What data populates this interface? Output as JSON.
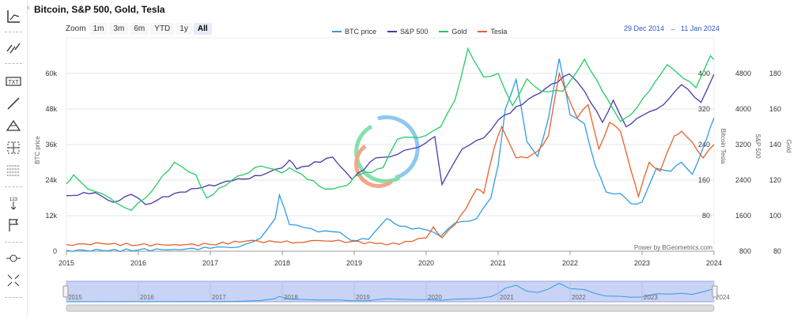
{
  "title": "Bitcoin, S&P 500, Gold, Tesla",
  "zoom": {
    "label": "Zoom",
    "buttons": [
      "1m",
      "3m",
      "6m",
      "YTD",
      "1y",
      "All"
    ],
    "active": "All"
  },
  "range": {
    "from": "29 Dec 2014",
    "arrow": "→",
    "to": "11 Jan 2024"
  },
  "credit": "Power by BGeometrics.com",
  "toolbar": {
    "collapse": "‹",
    "tools": [
      "crosshair-axes-icon",
      "trend-lines-icon",
      "text-annotation-icon",
      "line-icon",
      "fibonacci-icon",
      "measure-icon",
      "grid-lines-icon",
      "vertical-counter-icon",
      "flag-icon",
      "zoom-out-icon",
      "fullscreen-icon"
    ]
  },
  "colors": {
    "btc": "#2f9ce6",
    "sp500": "#4a39a8",
    "gold": "#22cc66",
    "tesla": "#e8602c",
    "navigator": "#c9d3f5"
  },
  "chart_data": {
    "type": "line",
    "x_axis": {
      "ticks": [
        "2015",
        "2016",
        "2017",
        "2018",
        "2019",
        "2020",
        "2021",
        "2022",
        "2023",
        "2024"
      ],
      "range": [
        2015,
        2024
      ]
    },
    "y_axes": [
      {
        "id": "btc",
        "label": "BTC price",
        "ticks": [
          "0",
          "12k",
          "24k",
          "36k",
          "48k",
          "60k"
        ],
        "range": [
          0,
          72000
        ]
      },
      {
        "id": "tesla",
        "label": "Bitcoin  Tesla",
        "ticks": [
          "80",
          "160",
          "240",
          "320",
          "400"
        ],
        "range": [
          0,
          480
        ]
      },
      {
        "id": "sp500",
        "label": "S&P 500",
        "ticks": [
          "800",
          "1600",
          "2400",
          "3200",
          "4000",
          "4800"
        ],
        "range": [
          800,
          5600
        ]
      },
      {
        "id": "gold",
        "label": "Gold",
        "ticks": [
          "80",
          "100",
          "120",
          "140",
          "160",
          "180"
        ],
        "range": [
          80,
          200
        ]
      }
    ],
    "series": [
      {
        "name": "BTC price",
        "axis": "btc",
        "color": "#2f9ce6",
        "points": [
          [
            2015.0,
            300
          ],
          [
            2015.5,
            250
          ],
          [
            2016.0,
            430
          ],
          [
            2016.5,
            650
          ],
          [
            2017.0,
            1000
          ],
          [
            2017.3,
            1200
          ],
          [
            2017.5,
            2500
          ],
          [
            2017.7,
            4500
          ],
          [
            2017.9,
            11000
          ],
          [
            2017.96,
            19000
          ],
          [
            2018.1,
            9000
          ],
          [
            2018.3,
            8000
          ],
          [
            2018.5,
            6500
          ],
          [
            2018.8,
            6400
          ],
          [
            2018.95,
            3700
          ],
          [
            2019.2,
            4000
          ],
          [
            2019.45,
            11000
          ],
          [
            2019.55,
            9500
          ],
          [
            2019.8,
            7500
          ],
          [
            2020.0,
            7200
          ],
          [
            2020.2,
            5000
          ],
          [
            2020.4,
            9500
          ],
          [
            2020.7,
            11000
          ],
          [
            2020.9,
            18000
          ],
          [
            2021.0,
            29000
          ],
          [
            2021.1,
            48000
          ],
          [
            2021.25,
            58000
          ],
          [
            2021.4,
            37000
          ],
          [
            2021.55,
            32000
          ],
          [
            2021.7,
            45000
          ],
          [
            2021.85,
            65000
          ],
          [
            2022.0,
            46000
          ],
          [
            2022.2,
            43000
          ],
          [
            2022.35,
            29000
          ],
          [
            2022.5,
            20000
          ],
          [
            2022.7,
            19500
          ],
          [
            2022.85,
            16000
          ],
          [
            2023.0,
            16600
          ],
          [
            2023.2,
            28000
          ],
          [
            2023.4,
            27000
          ],
          [
            2023.55,
            30000
          ],
          [
            2023.7,
            26000
          ],
          [
            2023.85,
            35000
          ],
          [
            2023.95,
            42000
          ],
          [
            2024.0,
            45000
          ]
        ]
      },
      {
        "name": "S&P 500",
        "axis": "sp500",
        "color": "#4a39a8",
        "points": [
          [
            2015.0,
            2050
          ],
          [
            2015.4,
            2120
          ],
          [
            2015.65,
            1900
          ],
          [
            2015.9,
            2080
          ],
          [
            2016.1,
            1850
          ],
          [
            2016.5,
            2100
          ],
          [
            2016.9,
            2240
          ],
          [
            2017.3,
            2380
          ],
          [
            2017.7,
            2500
          ],
          [
            2017.99,
            2670
          ],
          [
            2018.1,
            2850
          ],
          [
            2018.2,
            2650
          ],
          [
            2018.7,
            2920
          ],
          [
            2018.97,
            2420
          ],
          [
            2019.3,
            2900
          ],
          [
            2019.6,
            2980
          ],
          [
            2019.99,
            3230
          ],
          [
            2020.12,
            3380
          ],
          [
            2020.22,
            2300
          ],
          [
            2020.5,
            3100
          ],
          [
            2020.8,
            3350
          ],
          [
            2021.0,
            3750
          ],
          [
            2021.5,
            4300
          ],
          [
            2021.99,
            4790
          ],
          [
            2022.2,
            4400
          ],
          [
            2022.45,
            3700
          ],
          [
            2022.6,
            4200
          ],
          [
            2022.78,
            3600
          ],
          [
            2023.0,
            3850
          ],
          [
            2023.3,
            4100
          ],
          [
            2023.55,
            4550
          ],
          [
            2023.82,
            4150
          ],
          [
            2024.0,
            4780
          ]
        ]
      },
      {
        "name": "Gold",
        "axis": "gold",
        "color": "#22cc66",
        "points": [
          [
            2015.0,
            118
          ],
          [
            2015.1,
            123
          ],
          [
            2015.3,
            115
          ],
          [
            2015.6,
            110
          ],
          [
            2015.9,
            103
          ],
          [
            2016.1,
            110
          ],
          [
            2016.5,
            130
          ],
          [
            2016.8,
            123
          ],
          [
            2016.95,
            110
          ],
          [
            2017.3,
            120
          ],
          [
            2017.7,
            128
          ],
          [
            2017.99,
            124
          ],
          [
            2018.1,
            127
          ],
          [
            2018.6,
            115
          ],
          [
            2018.9,
            117
          ],
          [
            2019.0,
            122
          ],
          [
            2019.4,
            127
          ],
          [
            2019.6,
            143
          ],
          [
            2019.99,
            145
          ],
          [
            2020.2,
            150
          ],
          [
            2020.4,
            165
          ],
          [
            2020.58,
            194
          ],
          [
            2020.8,
            178
          ],
          [
            2021.0,
            180
          ],
          [
            2021.2,
            162
          ],
          [
            2021.4,
            177
          ],
          [
            2021.6,
            170
          ],
          [
            2021.9,
            170
          ],
          [
            2022.2,
            188
          ],
          [
            2022.45,
            170
          ],
          [
            2022.7,
            153
          ],
          [
            2022.85,
            157
          ],
          [
            2023.1,
            170
          ],
          [
            2023.35,
            185
          ],
          [
            2023.5,
            180
          ],
          [
            2023.75,
            172
          ],
          [
            2023.95,
            190
          ],
          [
            2024.0,
            188
          ]
        ]
      },
      {
        "name": "Tesla",
        "axis": "tesla",
        "color": "#e8602c",
        "points": [
          [
            2015.0,
            15
          ],
          [
            2015.5,
            17
          ],
          [
            2016.0,
            14
          ],
          [
            2016.5,
            15
          ],
          [
            2017.0,
            15
          ],
          [
            2017.5,
            23
          ],
          [
            2017.9,
            21
          ],
          [
            2018.3,
            20
          ],
          [
            2018.6,
            23
          ],
          [
            2018.97,
            22
          ],
          [
            2019.3,
            17
          ],
          [
            2019.45,
            14
          ],
          [
            2019.8,
            22
          ],
          [
            2020.0,
            30
          ],
          [
            2020.1,
            55
          ],
          [
            2020.22,
            30
          ],
          [
            2020.4,
            60
          ],
          [
            2020.55,
            95
          ],
          [
            2020.7,
            140
          ],
          [
            2020.8,
            130
          ],
          [
            2020.95,
            235
          ],
          [
            2021.05,
            280
          ],
          [
            2021.25,
            210
          ],
          [
            2021.4,
            210
          ],
          [
            2021.55,
            225
          ],
          [
            2021.7,
            260
          ],
          [
            2021.85,
            400
          ],
          [
            2021.95,
            355
          ],
          [
            2022.1,
            300
          ],
          [
            2022.25,
            330
          ],
          [
            2022.4,
            230
          ],
          [
            2022.55,
            290
          ],
          [
            2022.7,
            270
          ],
          [
            2022.85,
            180
          ],
          [
            2022.95,
            123
          ],
          [
            2023.1,
            200
          ],
          [
            2023.25,
            180
          ],
          [
            2023.45,
            260
          ],
          [
            2023.55,
            270
          ],
          [
            2023.7,
            245
          ],
          [
            2023.85,
            210
          ],
          [
            2024.0,
            240
          ]
        ]
      }
    ],
    "navigator": {
      "ticks": [
        "2015",
        "2016",
        "2017",
        "2018",
        "2019",
        "2020",
        "2021",
        "2022",
        "2023",
        "2024"
      ]
    }
  }
}
